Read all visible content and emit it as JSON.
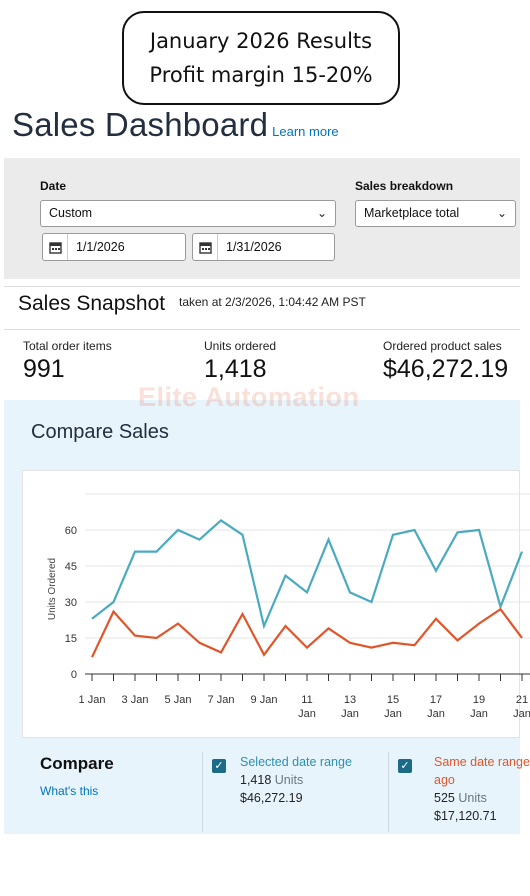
{
  "callout": {
    "line1": "January 2026 Results",
    "line2": "Profit margin 15-20%"
  },
  "header": {
    "title": "Sales Dashboard",
    "learn_more": "Learn more"
  },
  "filters": {
    "date_label": "Date",
    "date_value": "Custom",
    "start_date": "1/1/2026",
    "end_date": "1/31/2026",
    "breakdown_label": "Sales breakdown",
    "breakdown_value": "Marketplace total"
  },
  "snapshot": {
    "title": "Sales Snapshot",
    "taken_at": "taken at 2/3/2026, 1:04:42 AM PST",
    "metrics": [
      {
        "label": "Total order items",
        "value": "991"
      },
      {
        "label": "Units ordered",
        "value": "1,418"
      },
      {
        "label": "Ordered product sales",
        "value": "$46,272.19"
      }
    ]
  },
  "watermark": "Elite Automation",
  "compare_sales": {
    "title": "Compare Sales"
  },
  "chart_data": {
    "type": "line",
    "ylabel": "Units Ordered",
    "ylim": [
      0,
      75
    ],
    "y_ticks": [
      "0",
      "15",
      "30",
      "45",
      "60"
    ],
    "x_ticks": [
      {
        "day": 1,
        "l1": "1 Jan",
        "l2": ""
      },
      {
        "day": 3,
        "l1": "3 Jan",
        "l2": ""
      },
      {
        "day": 5,
        "l1": "5 Jan",
        "l2": ""
      },
      {
        "day": 7,
        "l1": "7 Jan",
        "l2": ""
      },
      {
        "day": 9,
        "l1": "9 Jan",
        "l2": ""
      },
      {
        "day": 11,
        "l1": "11",
        "l2": "Jan"
      },
      {
        "day": 13,
        "l1": "13",
        "l2": "Jan"
      },
      {
        "day": 15,
        "l1": "15",
        "l2": "Jan"
      },
      {
        "day": 17,
        "l1": "17",
        "l2": "Jan"
      },
      {
        "day": 19,
        "l1": "19",
        "l2": "Jan"
      },
      {
        "day": 21,
        "l1": "21",
        "l2": "Jan"
      }
    ],
    "x": [
      1,
      2,
      3,
      4,
      5,
      6,
      7,
      8,
      9,
      10,
      11,
      12,
      13,
      14,
      15,
      16,
      17,
      18,
      19,
      20,
      21
    ],
    "series": [
      {
        "color": "#4aaac0",
        "values": [
          23,
          30,
          51,
          51,
          60,
          56,
          64,
          58,
          20,
          41,
          34,
          56,
          34,
          30,
          58,
          60,
          43,
          59,
          60,
          28,
          51
        ]
      },
      {
        "color": "#e0562b",
        "values": [
          7,
          26,
          16,
          15,
          21,
          13,
          9,
          25,
          8,
          20,
          11,
          19,
          13,
          11,
          13,
          12,
          23,
          14,
          21,
          27,
          15
        ]
      }
    ],
    "grid": true
  },
  "compare": {
    "title": "Compare",
    "whats_this": "What's this",
    "selected": {
      "label": "Selected date range",
      "units": "1,418",
      "units_suffix": "Units",
      "sales": "$46,272.19",
      "color": "#2f8fb0"
    },
    "same_range": {
      "label_line1": "Same date range",
      "label_line2": "ago",
      "units": "525",
      "units_suffix": "Units",
      "sales": "$17,120.71",
      "color": "#e0562b"
    }
  }
}
